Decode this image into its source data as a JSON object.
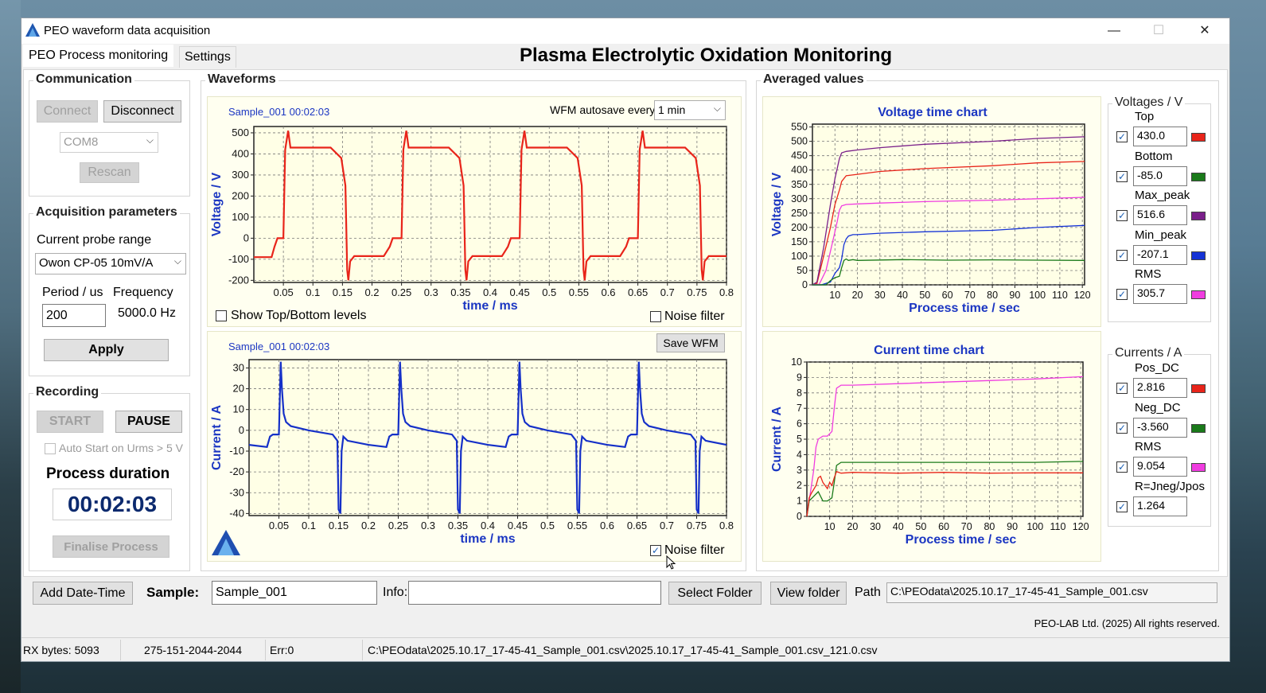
{
  "window": {
    "title": "PEO waveform data acquisition",
    "minimize": "—",
    "maximize": "☐",
    "close": "✕"
  },
  "tabs": {
    "process": "PEO Process monitoring",
    "settings": "Settings"
  },
  "main_title": "Plasma Electrolytic Oxidation Monitoring",
  "communication": {
    "label": "Communication",
    "connect": "Connect",
    "disconnect": "Disconnect",
    "port": "COM8",
    "rescan": "Rescan"
  },
  "acquisition": {
    "label": "Acquisition parameters",
    "probe_label": "Current probe range",
    "probe_value": "Owon CP-05 10mV/A",
    "period_label": "Period / us",
    "period_value": "200",
    "frequency_label": "Frequency",
    "frequency_value": "5000.0 Hz",
    "apply": "Apply"
  },
  "recording": {
    "label": "Recording",
    "start": "START",
    "pause": "PAUSE",
    "auto_start": "Auto Start on Urms > 5 V",
    "duration_label": "Process duration",
    "duration_value": "00:02:03",
    "finalise": "Finalise Process"
  },
  "waveforms": {
    "label": "Waveforms",
    "sample_stamp": "Sample_001 00:02:03",
    "autosave_label": "WFM autosave every",
    "autosave_value": "1 min",
    "show_levels": "Show Top/Bottom levels",
    "noise_filter": "Noise filter",
    "save_wfm": "Save WFM",
    "voltage_ylabel": "Voltage / V",
    "current_ylabel": "Current / A",
    "xlabel": "time / ms"
  },
  "averaged": {
    "label": "Averaged values",
    "voltages_label": "Voltages / V",
    "voltages": [
      {
        "name": "Top",
        "value": "430.0",
        "color": "#e8241a"
      },
      {
        "name": "Bottom",
        "value": "-85.0",
        "color": "#1a7a1a"
      },
      {
        "name": "Max_peak",
        "value": "516.6",
        "color": "#7a1f8a"
      },
      {
        "name": "Min_peak",
        "value": "-207.1",
        "color": "#1533d6"
      },
      {
        "name": "RMS",
        "value": "305.7",
        "color": "#f03ce0"
      }
    ],
    "currents_label": "Currents / A",
    "currents": [
      {
        "name": "Pos_DC",
        "value": "2.816",
        "color": "#e8241a"
      },
      {
        "name": "Neg_DC",
        "value": "-3.560",
        "color": "#1a7a1a"
      },
      {
        "name": "RMS",
        "value": "9.054",
        "color": "#f03ce0"
      },
      {
        "name": "R=Jneg/Jpos",
        "value": "1.264",
        "color": ""
      }
    ]
  },
  "bottom": {
    "add_date": "Add Date-Time",
    "sample_label": "Sample:",
    "sample_value": "Sample_001",
    "info_label": "Info:",
    "info_value": "",
    "select_folder": "Select Folder",
    "view_folder": "View folder",
    "path_label": "Path",
    "path_value": "C:\\PEOdata\\2025.10.17_17-45-41_Sample_001.csv",
    "copyright": "PEO-LAB Ltd. (2025) All rights reserved."
  },
  "status": {
    "rx": "RX bytes: 5093",
    "code": "275-151-2044-2044",
    "err": "Err:0",
    "file": "C:\\PEOdata\\2025.10.17_17-45-41_Sample_001.csv\\2025.10.17_17-45-41_Sample_001.csv_121.0.csv"
  },
  "chart_data": [
    {
      "type": "line",
      "title": "",
      "xlabel": "time / ms",
      "ylabel": "Voltage / V",
      "xlim": [
        0,
        0.8
      ],
      "ylim": [
        -210,
        530
      ],
      "xticks": [
        "0.05",
        "0.1",
        "0.15",
        "0.2",
        "0.25",
        "0.3",
        "0.35",
        "0.4",
        "0.45",
        "0.5",
        "0.55",
        "0.6",
        "0.65",
        "0.7",
        "0.75",
        "0.8"
      ],
      "yticks": [
        "500",
        "400",
        "300",
        "200",
        "100",
        "0",
        "-100",
        "-200"
      ],
      "series": [
        {
          "color": "#e8241a",
          "x": [
            0,
            0.03,
            0.035,
            0.04,
            0.05,
            0.053,
            0.058,
            0.062,
            0.08,
            0.13,
            0.148,
            0.155,
            0.158,
            0.16,
            0.163,
            0.17,
            0.22,
            0.23,
            0.235,
            0.24,
            0.25,
            0.253,
            0.258,
            0.262,
            0.28,
            0.33,
            0.348,
            0.355,
            0.358,
            0.36,
            0.363,
            0.37,
            0.42,
            0.43,
            0.435,
            0.44,
            0.45,
            0.453,
            0.458,
            0.462,
            0.48,
            0.53,
            0.548,
            0.555,
            0.558,
            0.56,
            0.563,
            0.57,
            0.62,
            0.63,
            0.635,
            0.64,
            0.65,
            0.653,
            0.658,
            0.662,
            0.68,
            0.73,
            0.748,
            0.755,
            0.758,
            0.76,
            0.763,
            0.77,
            0.8
          ],
          "y": [
            -90,
            -90,
            -40,
            0,
            0,
            420,
            510,
            430,
            430,
            430,
            380,
            250,
            -150,
            -200,
            -110,
            -85,
            -85,
            -40,
            0,
            0,
            0,
            420,
            510,
            430,
            430,
            430,
            380,
            250,
            -150,
            -200,
            -110,
            -85,
            -85,
            -40,
            0,
            0,
            0,
            420,
            510,
            430,
            430,
            430,
            380,
            250,
            -150,
            -200,
            -110,
            -85,
            -85,
            -40,
            0,
            0,
            0,
            420,
            510,
            430,
            430,
            430,
            380,
            250,
            -150,
            -200,
            -110,
            -85,
            -85
          ]
        }
      ]
    },
    {
      "type": "line",
      "title": "",
      "xlabel": "time / ms",
      "ylabel": "Current / A",
      "xlim": [
        0,
        0.8
      ],
      "ylim": [
        -41,
        34
      ],
      "xticks": [
        "0.05",
        "0.1",
        "0.15",
        "0.2",
        "0.25",
        "0.3",
        "0.35",
        "0.4",
        "0.45",
        "0.5",
        "0.55",
        "0.6",
        "0.65",
        "0.7",
        "0.75",
        "0.8"
      ],
      "yticks": [
        "30",
        "20",
        "10",
        "0",
        "-10",
        "-20",
        "-30",
        "-40"
      ],
      "series": [
        {
          "color": "#1530c8",
          "x": [
            0,
            0.03,
            0.035,
            0.04,
            0.05,
            0.053,
            0.055,
            0.058,
            0.062,
            0.07,
            0.1,
            0.14,
            0.148,
            0.15,
            0.153,
            0.155,
            0.158,
            0.165,
            0.2,
            0.23,
            0.235,
            0.24,
            0.25,
            0.253,
            0.255,
            0.258,
            0.262,
            0.27,
            0.3,
            0.34,
            0.348,
            0.35,
            0.353,
            0.355,
            0.358,
            0.365,
            0.4,
            0.43,
            0.435,
            0.44,
            0.45,
            0.453,
            0.455,
            0.458,
            0.462,
            0.47,
            0.5,
            0.54,
            0.548,
            0.55,
            0.553,
            0.555,
            0.558,
            0.565,
            0.6,
            0.63,
            0.635,
            0.64,
            0.65,
            0.653,
            0.655,
            0.658,
            0.662,
            0.67,
            0.7,
            0.74,
            0.748,
            0.75,
            0.753,
            0.755,
            0.758,
            0.765,
            0.8
          ],
          "y": [
            -7,
            -8,
            -3,
            -2,
            -2,
            33,
            20,
            8,
            4,
            2,
            0,
            -2,
            -5,
            -38,
            -40,
            -10,
            -3,
            -5,
            -7,
            -8,
            -3,
            -2,
            -2,
            33,
            20,
            8,
            4,
            2,
            0,
            -2,
            -5,
            -38,
            -40,
            -10,
            -3,
            -5,
            -7,
            -8,
            -3,
            -2,
            -2,
            33,
            20,
            8,
            4,
            2,
            0,
            -2,
            -5,
            -38,
            -40,
            -10,
            -3,
            -5,
            -7,
            -8,
            -3,
            -2,
            -2,
            33,
            20,
            8,
            4,
            2,
            0,
            -2,
            -5,
            -38,
            -40,
            -10,
            -3,
            -5,
            -7
          ]
        }
      ]
    },
    {
      "type": "line",
      "title": "Voltage time chart",
      "xlabel": "Process time / sec",
      "ylabel": "Voltage / V",
      "xlim": [
        0,
        121
      ],
      "ylim": [
        0,
        560
      ],
      "xticks": [
        "10",
        "20",
        "30",
        "40",
        "50",
        "60",
        "70",
        "80",
        "90",
        "100",
        "110",
        "120"
      ],
      "yticks": [
        "550",
        "500",
        "450",
        "400",
        "350",
        "300",
        "250",
        "200",
        "150",
        "100",
        "50",
        "0"
      ],
      "series": [
        {
          "name": "Top",
          "color": "#e8241a",
          "x": [
            0,
            2,
            5,
            8,
            10,
            12,
            13,
            15,
            20,
            30,
            50,
            80,
            100,
            121
          ],
          "y": [
            0,
            5,
            100,
            200,
            280,
            330,
            360,
            380,
            385,
            395,
            405,
            415,
            425,
            430
          ]
        },
        {
          "name": "Max_peak",
          "color": "#7a1f8a",
          "x": [
            0,
            2,
            5,
            8,
            10,
            12,
            13,
            15,
            20,
            30,
            50,
            80,
            100,
            121
          ],
          "y": [
            0,
            10,
            130,
            280,
            370,
            440,
            460,
            465,
            470,
            478,
            490,
            500,
            510,
            516
          ]
        },
        {
          "name": "RMS",
          "color": "#f03ce0",
          "x": [
            0,
            3,
            6,
            9,
            11,
            12,
            13,
            15,
            20,
            30,
            50,
            80,
            100,
            121
          ],
          "y": [
            0,
            2,
            50,
            150,
            220,
            260,
            275,
            280,
            282,
            285,
            290,
            295,
            300,
            305
          ]
        },
        {
          "name": "Min_peak",
          "color": "#1533d6",
          "x": [
            0,
            4,
            8,
            10,
            12,
            13,
            14,
            15,
            16,
            18,
            20,
            30,
            50,
            80,
            100,
            121
          ],
          "y": [
            0,
            0,
            10,
            40,
            60,
            90,
            140,
            160,
            170,
            175,
            175,
            180,
            185,
            190,
            200,
            207
          ]
        },
        {
          "name": "Bottom",
          "color": "#1a7a1a",
          "x": [
            0,
            6,
            8,
            10,
            12,
            13,
            14,
            15,
            16,
            18,
            20,
            40,
            60,
            80,
            100,
            121
          ],
          "y": [
            0,
            0,
            15,
            25,
            30,
            60,
            85,
            90,
            85,
            88,
            85,
            88,
            86,
            87,
            86,
            85
          ]
        }
      ]
    },
    {
      "type": "line",
      "title": "Current time chart",
      "xlabel": "Process time / sec",
      "ylabel": "Current / A",
      "xlim": [
        0,
        121
      ],
      "ylim": [
        0,
        10
      ],
      "xticks": [
        "10",
        "20",
        "30",
        "40",
        "50",
        "60",
        "70",
        "80",
        "90",
        "100",
        "110",
        "120"
      ],
      "yticks": [
        "10",
        "9",
        "8",
        "7",
        "6",
        "5",
        "4",
        "3",
        "2",
        "1",
        "0"
      ],
      "series": [
        {
          "name": "RMS",
          "color": "#f03ce0",
          "x": [
            0,
            1,
            3,
            4,
            5,
            7,
            9,
            11,
            12,
            13,
            15,
            20,
            40,
            60,
            80,
            100,
            121
          ],
          "y": [
            0,
            1,
            3,
            4.5,
            5,
            5.2,
            5.2,
            5.5,
            7,
            8.3,
            8.5,
            8.5,
            8.6,
            8.7,
            8.8,
            8.9,
            9.05
          ]
        },
        {
          "name": "Neg_DC",
          "color": "#1a7a1a",
          "x": [
            0,
            1,
            3,
            5,
            7,
            9,
            11,
            12,
            13,
            15,
            20,
            40,
            60,
            80,
            100,
            121
          ],
          "y": [
            0,
            1,
            1.3,
            1.6,
            1,
            1,
            1.2,
            2.2,
            3.3,
            3.5,
            3.5,
            3.5,
            3.5,
            3.5,
            3.5,
            3.56
          ]
        },
        {
          "name": "Pos_DC",
          "color": "#e8241a",
          "x": [
            0,
            1,
            2,
            4,
            5,
            6,
            7,
            9,
            10,
            11,
            12,
            13,
            15,
            20,
            40,
            60,
            80,
            100,
            121
          ],
          "y": [
            0,
            1.2,
            1.5,
            2,
            2.5,
            2.6,
            2.2,
            1.8,
            2.2,
            2,
            2.5,
            2.9,
            2.8,
            2.85,
            2.8,
            2.85,
            2.8,
            2.82,
            2.82
          ]
        }
      ]
    }
  ]
}
